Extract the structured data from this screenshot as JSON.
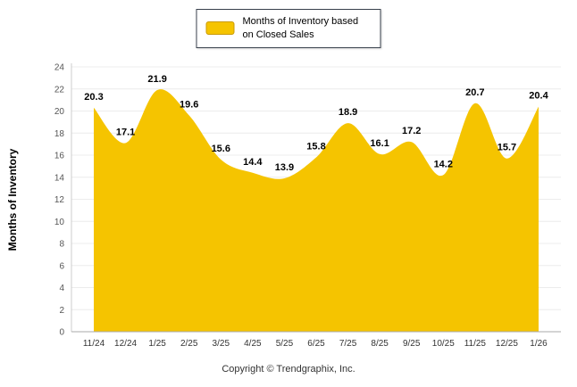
{
  "legend": {
    "label": "Months of Inventory based on Closed Sales",
    "swatch_color": "#F5C400"
  },
  "footer": "Copyright © Trendgraphix, Inc.",
  "chart_data": {
    "type": "area",
    "title": "",
    "xlabel": "",
    "ylabel": "Months of Inventory",
    "categories": [
      "11/24",
      "12/24",
      "1/25",
      "2/25",
      "3/25",
      "4/25",
      "5/25",
      "6/25",
      "7/25",
      "8/25",
      "9/25",
      "10/25",
      "11/25",
      "12/25",
      "1/26"
    ],
    "values": [
      20.3,
      17.1,
      21.9,
      19.6,
      15.6,
      14.4,
      13.9,
      15.8,
      18.9,
      16.1,
      17.2,
      14.2,
      20.7,
      15.7,
      20.4
    ],
    "series_name": "Months of Inventory based on Closed Sales",
    "series_color": "#F5C400",
    "ylim": [
      0,
      24
    ],
    "ytick_step": 2,
    "grid": true,
    "legend_position": "top",
    "data_labels": true
  }
}
